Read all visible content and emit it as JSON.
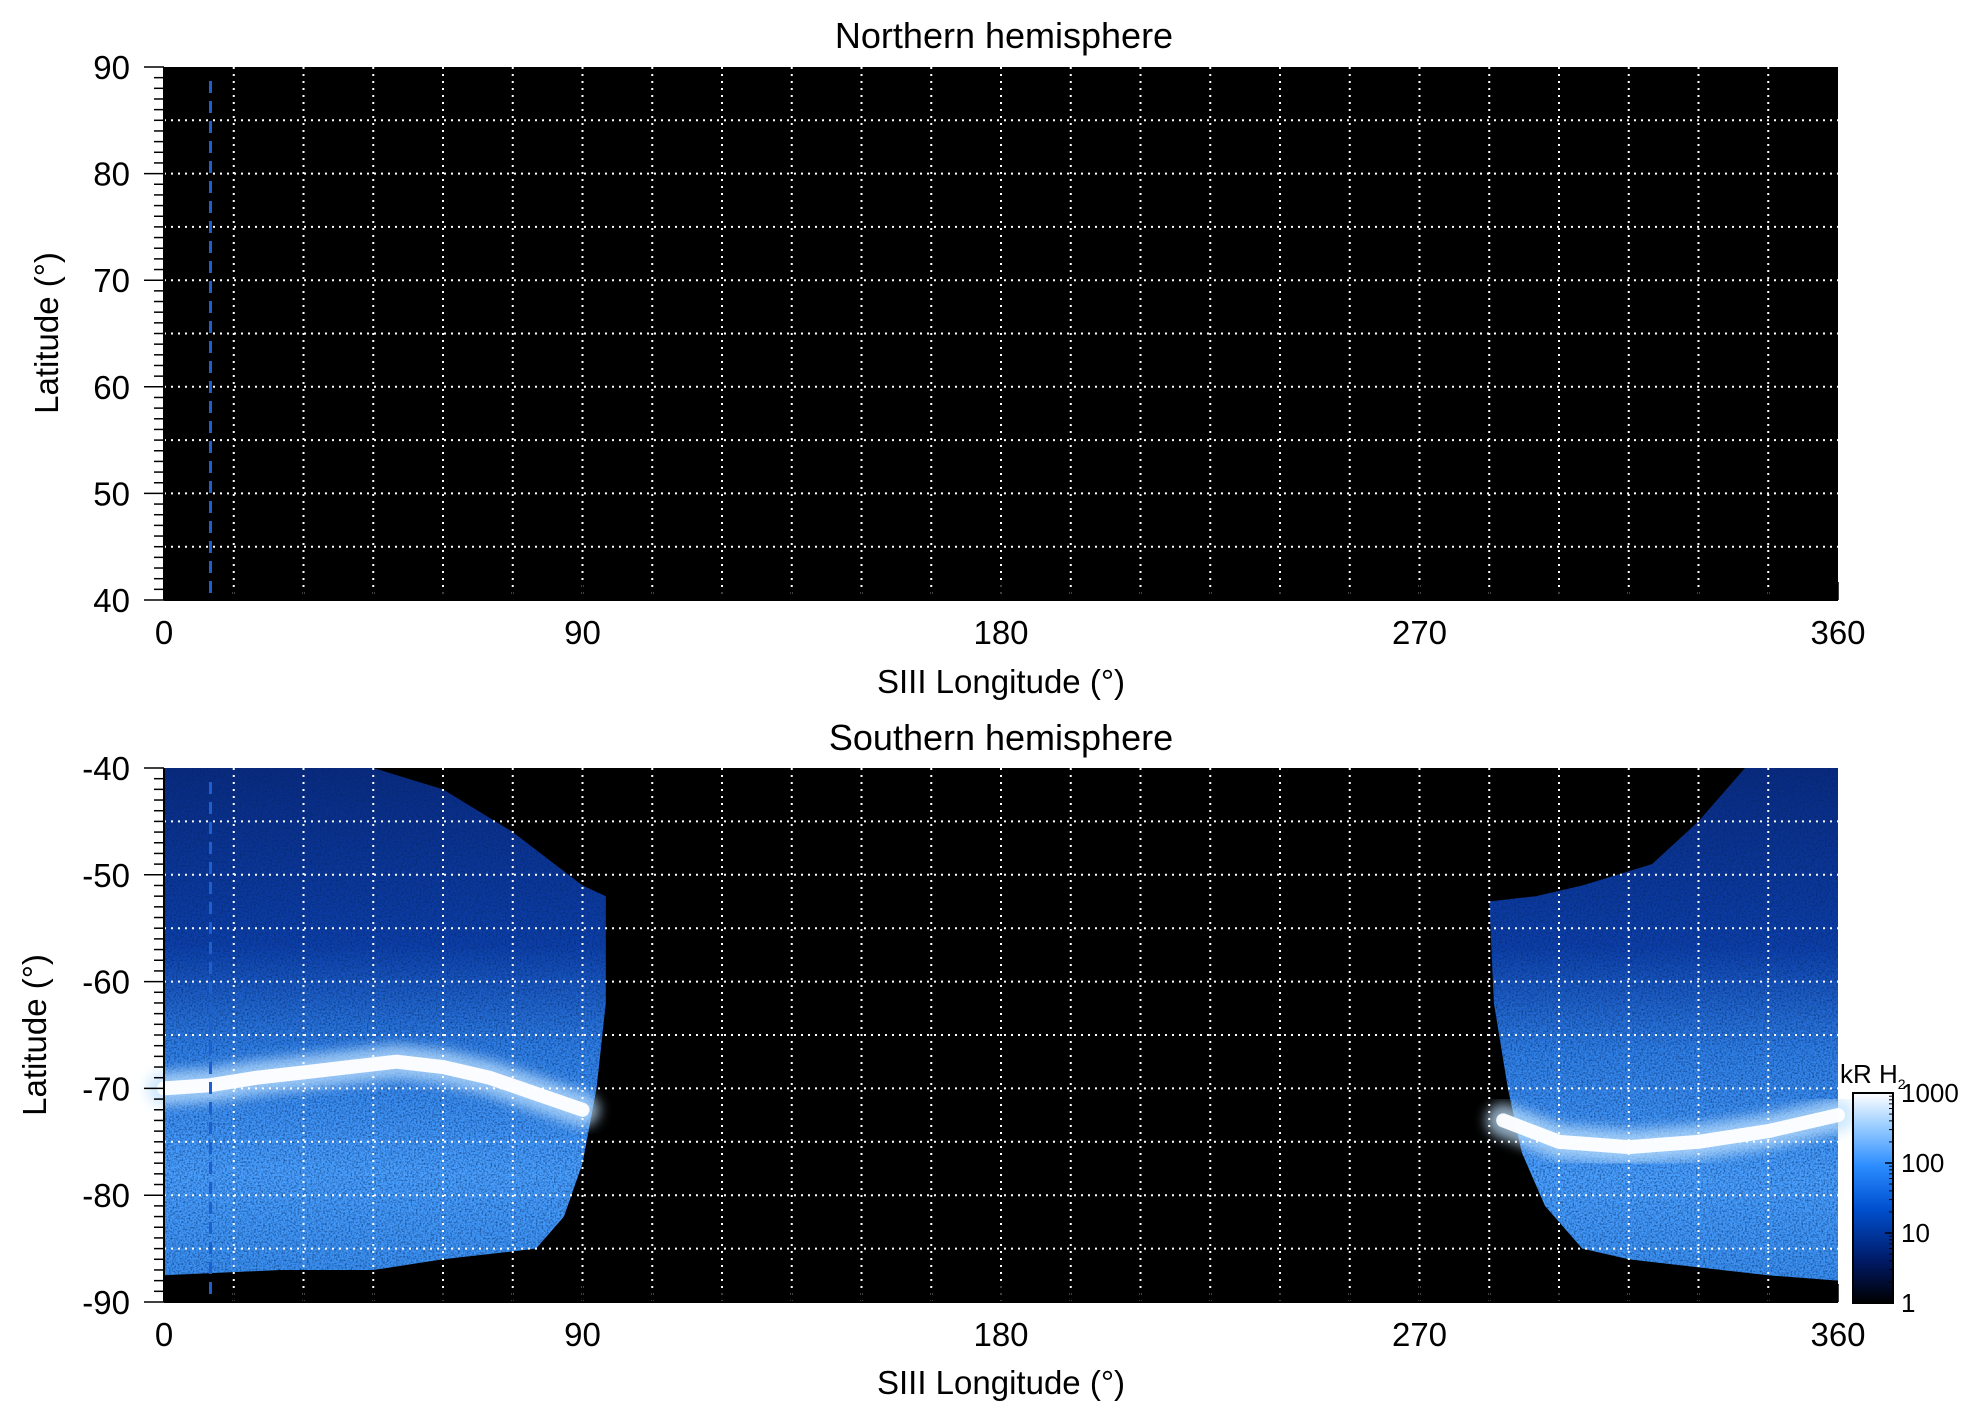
{
  "chart_data": [
    {
      "type": "heatmap",
      "title": "Northern hemisphere",
      "xlabel": "SIII Longitude (°)",
      "ylabel": "Latitude (°)",
      "xlim": [
        0,
        360
      ],
      "ylim": [
        40,
        90
      ],
      "x_ticks": [
        0,
        90,
        180,
        270,
        360
      ],
      "y_ticks": [
        40,
        50,
        60,
        70,
        80,
        90
      ],
      "grid": true,
      "grid_style": "dotted",
      "grid_x_step": 15,
      "grid_y_step": 5,
      "background_color": "#000000",
      "marker_longitude": 10,
      "marker_color": "#1e5fd0",
      "emission_regions": []
    },
    {
      "type": "heatmap",
      "title": "Southern hemisphere",
      "xlabel": "SIII Longitude (°)",
      "ylabel": "Latitude (°)",
      "xlim": [
        0,
        360
      ],
      "ylim": [
        -90,
        -40
      ],
      "x_ticks": [
        0,
        90,
        180,
        270,
        360
      ],
      "y_ticks": [
        -40,
        -50,
        -60,
        -70,
        -80,
        -90
      ],
      "grid": true,
      "grid_style": "dotted",
      "grid_x_step": 15,
      "grid_y_step": 5,
      "background_color": "#000000",
      "marker_longitude": 10,
      "marker_color": "#1e5fd0",
      "emission_regions": [
        {
          "lon_range": [
            0,
            95
          ],
          "boundary": [
            [
              0,
              -40
            ],
            [
              45,
              -40
            ],
            [
              60,
              -42
            ],
            [
              75,
              -46
            ],
            [
              90,
              -51
            ],
            [
              95,
              -52
            ],
            [
              95,
              -62
            ],
            [
              93,
              -70
            ],
            [
              90,
              -77
            ],
            [
              86,
              -82
            ],
            [
              80,
              -85
            ],
            [
              60,
              -86
            ],
            [
              45,
              -87
            ],
            [
              25,
              -87
            ],
            [
              0,
              -87.5
            ]
          ],
          "main_oval": [
            [
              0,
              -70
            ],
            [
              10,
              -69.7
            ],
            [
              20,
              -69
            ],
            [
              30,
              -68.5
            ],
            [
              40,
              -68
            ],
            [
              50,
              -67.5
            ],
            [
              60,
              -68
            ],
            [
              70,
              -69
            ],
            [
              80,
              -70.5
            ],
            [
              90,
              -72
            ]
          ]
        },
        {
          "lon_range": [
            285,
            360
          ],
          "boundary": [
            [
              285,
              -52.5
            ],
            [
              295,
              -52
            ],
            [
              305,
              -51
            ],
            [
              320,
              -49
            ],
            [
              330,
              -45
            ],
            [
              340,
              -40
            ],
            [
              360,
              -40
            ],
            [
              360,
              -88
            ],
            [
              345,
              -87.5
            ],
            [
              335,
              -87
            ],
            [
              315,
              -86
            ],
            [
              305,
              -85
            ],
            [
              297,
              -81
            ],
            [
              292,
              -76
            ],
            [
              289,
              -70
            ],
            [
              286,
              -62
            ]
          ],
          "main_oval": [
            [
              288,
              -73
            ],
            [
              300,
              -75
            ],
            [
              315,
              -75.5
            ],
            [
              330,
              -75
            ],
            [
              345,
              -74
            ],
            [
              360,
              -72.5
            ]
          ]
        }
      ]
    }
  ],
  "colorbar": {
    "label": "kR H",
    "label_subscript": "2",
    "ticks": [
      "1000",
      "100",
      "10",
      "1"
    ],
    "scale": "log",
    "range": [
      1,
      1000
    ],
    "colors": [
      "#000000",
      "#001a66",
      "#0050d0",
      "#2a8cff",
      "#9fd0ff",
      "#ffffff"
    ]
  }
}
